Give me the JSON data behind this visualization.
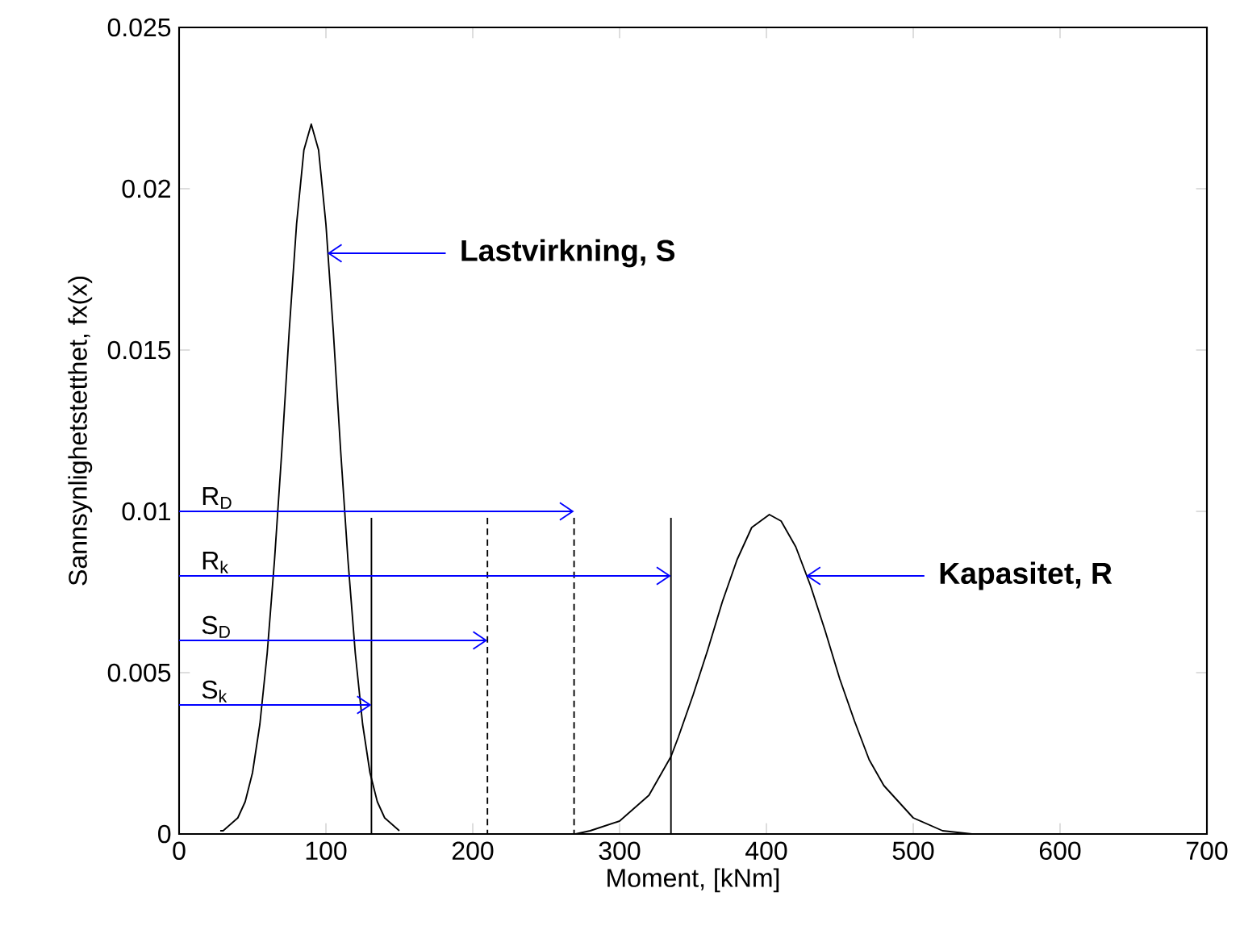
{
  "chart_data": {
    "type": "line",
    "xlabel": "Moment, [kNm]",
    "ylabel": "Sannsynlighetstetthet, fx(x)",
    "xlim": [
      0,
      700
    ],
    "xticks": [
      0,
      100,
      200,
      300,
      400,
      500,
      600,
      700
    ],
    "ylim": [
      0,
      0.025
    ],
    "yticks": [
      0,
      0.005,
      0.01,
      0.015,
      0.02,
      0.025
    ],
    "marker": "none",
    "series": [
      {
        "color": "#000000",
        "line_style": "solid",
        "x": [
          28,
          30,
          40,
          45,
          50,
          55,
          60,
          65,
          70,
          75,
          80,
          85,
          90,
          95,
          100,
          105,
          110,
          115,
          120,
          125,
          130,
          135,
          140,
          150
        ],
        "values": [
          0.0001,
          0.0001,
          0.0005,
          0.001,
          0.0019,
          0.0034,
          0.0056,
          0.0085,
          0.0119,
          0.0156,
          0.0189,
          0.0212,
          0.022,
          0.0212,
          0.0189,
          0.0156,
          0.0119,
          0.0085,
          0.0056,
          0.0034,
          0.0019,
          0.001,
          0.0005,
          0.0001
        ]
      },
      {
        "color": "#000000",
        "line_style": "solid",
        "x": [
          265,
          270,
          280,
          300,
          320,
          335,
          340,
          350,
          360,
          370,
          380,
          390,
          402,
          410,
          420,
          430,
          440,
          450,
          460,
          470,
          480,
          500,
          520,
          540
        ],
        "values": [
          0,
          0,
          0.0001,
          0.0004,
          0.0012,
          0.0024,
          0.003,
          0.0043,
          0.0057,
          0.0072,
          0.0085,
          0.0095,
          0.0099,
          0.0097,
          0.0089,
          0.0077,
          0.0063,
          0.0048,
          0.0035,
          0.0023,
          0.0015,
          0.0005,
          0.0001,
          0
        ]
      },
      {
        "color": "#000000",
        "line_style": "solid",
        "x": [
          131,
          131
        ],
        "values": [
          0,
          0.0098
        ]
      },
      {
        "color": "#000000",
        "line_style": "dashed",
        "x": [
          210,
          210
        ],
        "values": [
          0,
          0.0098
        ]
      },
      {
        "color": "#000000",
        "line_style": "dashed",
        "x": [
          269,
          269
        ],
        "values": [
          0,
          0.0098
        ]
      },
      {
        "color": "#000000",
        "line_style": "solid",
        "x": [
          335,
          335
        ],
        "values": [
          0,
          0.0098
        ]
      }
    ],
    "annotations": [
      {
        "text": "Lastvirkning, S",
        "x": 101,
        "y": 0.018
      },
      {
        "text": "Kapasitet, R",
        "x": 427,
        "y": 0.008
      },
      {
        "text": "R$_{D}$",
        "x": 269,
        "y": 0.01
      },
      {
        "text": "R$_{k}$",
        "x": 335,
        "y": 0.008
      },
      {
        "text": "S$_{D}$",
        "x": 210,
        "y": 0.006
      },
      {
        "text": "S$_{k}$",
        "x": 131,
        "y": 0.004
      }
    ]
  }
}
